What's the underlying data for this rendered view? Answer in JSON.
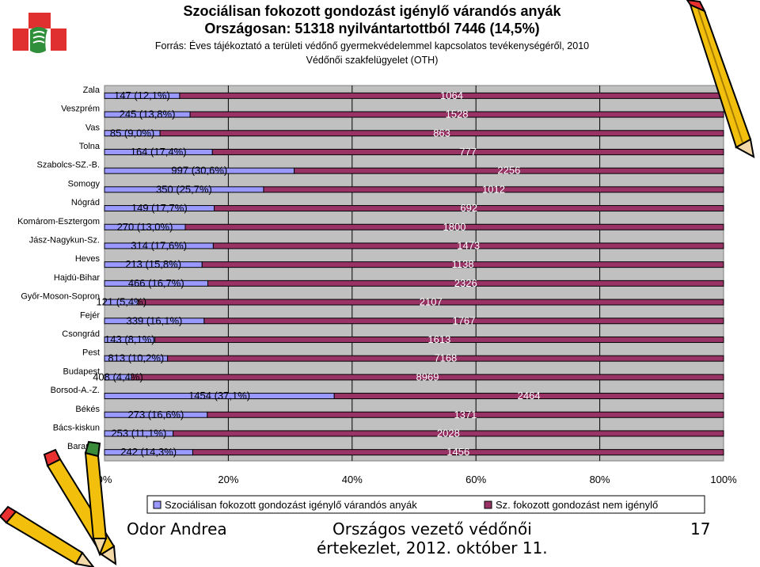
{
  "header": {
    "title": "Szociálisan fokozott gondozást igénylő várandós anyák",
    "subtitle": "Országosan: 51318 nyilvántartottból 7446 (14,5%)",
    "source": "Forrás: Éves tájékoztató a területi védőnő gyermekvédelemmel kapcsolatos tevékenységéről, 2010",
    "source2": "Védőnői szakfelügyelet (OTH)"
  },
  "chart_data": {
    "type": "bar",
    "orientation": "horizontal",
    "stacked": "100%",
    "categories": [
      "Zala",
      "Veszprém",
      "Vas",
      "Tolna",
      "Szabolcs-SZ.-B.",
      "Somogy",
      "Nógrád",
      "Komárom-Esztergom",
      "Jász-Nagykun-Sz.",
      "Heves",
      "Hajdú-Bihar",
      "Győr-Moson-Sopron",
      "Fejér",
      "Csongrád",
      "Pest",
      "Budapest",
      "Borsod-A.-Z.",
      "Békés",
      "Bács-kiskun",
      "Baranya"
    ],
    "series": [
      {
        "name": "Szociálisan fokozott gondozást igénylő várandós anyák",
        "color": "#9999ff",
        "values": [
          147,
          245,
          85,
          164,
          997,
          350,
          149,
          270,
          314,
          213,
          466,
          121,
          339,
          143,
          813,
          408,
          1454,
          273,
          253,
          242
        ],
        "labels": [
          "147 (12,1%)",
          "245 (13,8%)",
          "85 (9,0%)",
          "164 (17,4%)",
          "997 (30,6%)",
          "350 (25,7%)",
          "149 (17,7%)",
          "270 (13,0%)",
          "314 (17,6%)",
          "213 (15,8%)",
          "466 (16,7%)",
          "121 (5,4%)",
          "339 (16,1%)",
          "143 (8,1%)",
          "813 (10,2%)",
          "408 (4,4%)",
          "1454 (37,1%)",
          "273 (16,6%)",
          "253 (11,1%)",
          "242 (14,3%)"
        ]
      },
      {
        "name": "Sz. fokozott gondozást nem igénylő",
        "color": "#993366",
        "values": [
          1064,
          1528,
          863,
          777,
          2256,
          1012,
          692,
          1800,
          1473,
          1138,
          2326,
          2107,
          1767,
          1613,
          7168,
          8969,
          2464,
          1371,
          2028,
          1456
        ],
        "labels": [
          "1064",
          "1528",
          "863",
          "777",
          "2256",
          "1012",
          "692",
          "1800",
          "1473",
          "1138",
          "2326",
          "2107",
          "1767",
          "1613",
          "7168",
          "8969",
          "2464",
          "1371",
          "2028",
          "1456"
        ]
      }
    ],
    "x_ticks": [
      "0%",
      "20%",
      "40%",
      "60%",
      "80%",
      "100%"
    ],
    "xlim": [
      0,
      100
    ],
    "grid": "vertical",
    "legend_position": "bottom"
  },
  "footer": {
    "author": "Odor Andrea",
    "event_line1": "Országos vezető védőnői",
    "event_line2": "értekezlet, 2012. október 11.",
    "page": "17"
  }
}
